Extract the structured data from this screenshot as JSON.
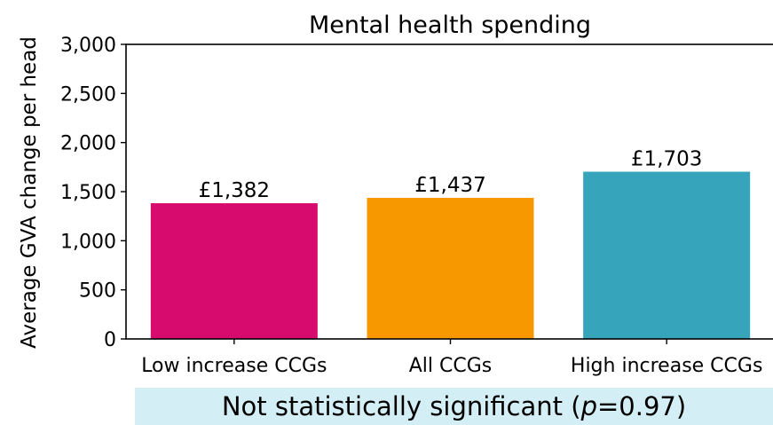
{
  "chart_data": {
    "type": "bar",
    "title": "Mental health spending",
    "ylabel": "Average GVA change per head",
    "xlabel": "",
    "categories": [
      "Low increase CCGs",
      "All CCGs",
      "High increase CCGs"
    ],
    "values": [
      1382,
      1437,
      1703
    ],
    "data_labels": [
      "£1,382",
      "£1,437",
      "£1,703"
    ],
    "colors": [
      "#d70a6e",
      "#f79800",
      "#36a4bb"
    ],
    "ylim": [
      0,
      3000
    ],
    "yticks": [
      0,
      500,
      1000,
      1500,
      2000,
      2500,
      3000
    ],
    "ytick_labels": [
      "0",
      "500",
      "1,000",
      "1,500",
      "2,000",
      "2,500",
      "3,000"
    ],
    "grid": false
  },
  "banner": {
    "prefix": "Not statistically significant (",
    "p_symbol": "p",
    "suffix": "=0.97)",
    "background": "#d3eef4"
  }
}
